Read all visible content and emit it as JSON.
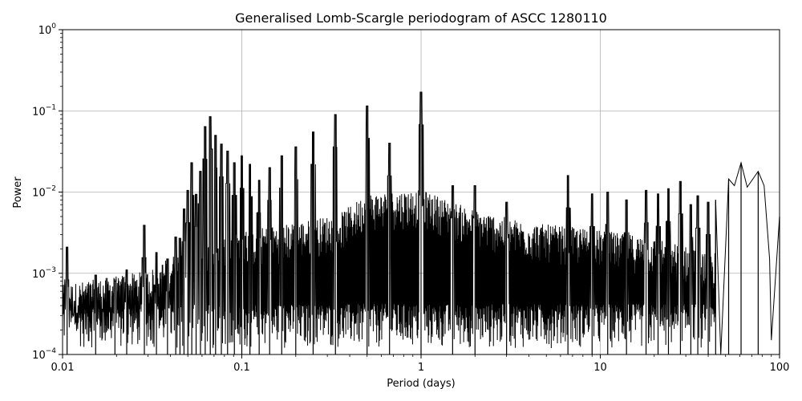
{
  "chart_data": {
    "type": "line",
    "title": "Generalised Lomb-Scargle periodogram of ASCC 1280110",
    "xlabel": "Period (days)",
    "ylabel": "Power",
    "xscale": "log",
    "yscale": "log",
    "xlim": [
      0.01,
      100
    ],
    "ylim": [
      0.0001,
      1
    ],
    "grid": true,
    "line_color": "#000000",
    "x_ticks": [
      {
        "value": 0.01,
        "label": "0.01"
      },
      {
        "value": 0.1,
        "label": "0.1"
      },
      {
        "value": 1,
        "label": "1"
      },
      {
        "value": 10,
        "label": "10"
      },
      {
        "value": 100,
        "label": "100"
      }
    ],
    "y_ticks": [
      {
        "value": 0.0001,
        "base": "10",
        "exp": "−4"
      },
      {
        "value": 0.001,
        "base": "10",
        "exp": "−3"
      },
      {
        "value": 0.01,
        "base": "10",
        "exp": "−2"
      },
      {
        "value": 0.1,
        "base": "10",
        "exp": "−1"
      },
      {
        "value": 1,
        "base": "10",
        "exp": "0"
      }
    ],
    "series": [
      {
        "peaks": [
          [
            0.0106,
            0.0021
          ],
          [
            0.0153,
            0.00095
          ],
          [
            0.0196,
            0.0008
          ],
          [
            0.0228,
            0.0011
          ],
          [
            0.0286,
            0.0039
          ],
          [
            0.0334,
            0.0018
          ],
          [
            0.0385,
            0.0015
          ],
          [
            0.0428,
            0.0028
          ],
          [
            0.0452,
            0.0027
          ],
          [
            0.0476,
            0.0062
          ],
          [
            0.05,
            0.0105
          ],
          [
            0.0526,
            0.023
          ],
          [
            0.0556,
            0.0094
          ],
          [
            0.0588,
            0.018
          ],
          [
            0.0625,
            0.064
          ],
          [
            0.0667,
            0.085
          ],
          [
            0.0714,
            0.05
          ],
          [
            0.0769,
            0.039
          ],
          [
            0.0833,
            0.032
          ],
          [
            0.0909,
            0.023
          ],
          [
            0.1,
            0.028
          ],
          [
            0.111,
            0.022
          ],
          [
            0.125,
            0.014
          ],
          [
            0.143,
            0.02
          ],
          [
            0.167,
            0.028
          ],
          [
            0.2,
            0.036
          ],
          [
            0.25,
            0.055
          ],
          [
            0.333,
            0.09
          ],
          [
            0.5,
            0.115
          ],
          [
            0.667,
            0.04
          ],
          [
            1.0,
            0.17
          ],
          [
            1.5,
            0.012
          ],
          [
            2.0,
            0.012
          ],
          [
            3.0,
            0.0075
          ],
          [
            6.6,
            0.016
          ],
          [
            9.0,
            0.0095
          ],
          [
            11.0,
            0.01
          ],
          [
            14.0,
            0.008
          ],
          [
            18.0,
            0.0105
          ],
          [
            21.0,
            0.0095
          ],
          [
            24.0,
            0.011
          ],
          [
            28.0,
            0.0135
          ],
          [
            32.0,
            0.007
          ],
          [
            35.0,
            0.009
          ],
          [
            40.0,
            0.0075
          ],
          [
            44.0,
            0.008
          ],
          [
            52.0,
            0.0145
          ],
          [
            61.0,
            0.023
          ],
          [
            76.0,
            0.018
          ],
          [
            100.0,
            0.005
          ]
        ],
        "envelope": [
          [
            0.01,
            0.0006
          ],
          [
            0.03,
            0.0009
          ],
          [
            0.05,
            0.0018
          ],
          [
            0.1,
            0.0028
          ],
          [
            0.2,
            0.0035
          ],
          [
            0.35,
            0.0045
          ],
          [
            0.5,
            0.008
          ],
          [
            1.0,
            0.009
          ],
          [
            2.0,
            0.005
          ],
          [
            4.0,
            0.0035
          ],
          [
            8.0,
            0.003
          ],
          [
            15.0,
            0.0025
          ],
          [
            25.0,
            0.002
          ],
          [
            40.0,
            0.0015
          ]
        ],
        "smooth_tail": [
          [
            44.0,
            0.008
          ],
          [
            47.0,
            0.0001
          ],
          [
            52.0,
            0.0145
          ],
          [
            56.0,
            0.012
          ],
          [
            61.0,
            0.023
          ],
          [
            66.0,
            0.0115
          ],
          [
            76.0,
            0.018
          ],
          [
            82.0,
            0.012
          ],
          [
            88.0,
            0.0015
          ],
          [
            90.0,
            0.00015
          ],
          [
            100.0,
            0.005
          ]
        ]
      }
    ]
  }
}
